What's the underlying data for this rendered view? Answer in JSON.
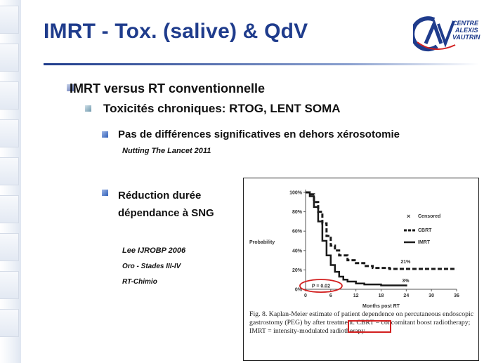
{
  "slide": {
    "title": "IMRT - Tox. (salive) & QdV",
    "logo": {
      "line1": "CENTRE",
      "line2": "ALEXIS",
      "line3": "VAUTRIN"
    },
    "bullets": {
      "level1": "IMRT versus RT conventionnelle",
      "level2": "Toxicités chroniques: RTOG, LENT SOMA",
      "level3_a": "Pas de différences significatives en dehors xérosotomie",
      "ref_a": "Nutting The Lancet 2011",
      "level3_b_line1": "Réduction durée",
      "level3_b_line2": "dépendance à SNG",
      "ref_b_line1": "Lee IJROBP 2006",
      "ref_b_line2": "Oro - Stades III-IV",
      "ref_b_line3": "RT-Chimio"
    }
  },
  "figure": {
    "caption": "Fig. 8. Kaplan-Meier estimate of patient dependence on percutaneous endoscopic gastrostomy (PEG) by after treatment. CBRT = concomitant boost radiotherapy; IMRT = intensity-modulated radiotherapy.",
    "p_value_label": "P = 0.02"
  },
  "chart_data": {
    "type": "line",
    "title": "",
    "xlabel": "Months post RT",
    "ylabel": "Probability",
    "xlim": [
      0,
      36
    ],
    "ylim": [
      0,
      100
    ],
    "x_ticks": [
      "0",
      "6",
      "12",
      "18",
      "24",
      "30",
      "36"
    ],
    "y_ticks": [
      "0%",
      "20%",
      "40%",
      "60%",
      "80%",
      "100%"
    ],
    "legend": [
      "Censored",
      "CBRT",
      "IMRT"
    ],
    "legend_position": "top-right",
    "annotations": [
      "21%",
      "3%",
      "P = 0.02"
    ],
    "series": [
      {
        "name": "CBRT",
        "style": "dashed",
        "x": [
          0,
          1,
          2,
          3,
          4,
          5,
          6,
          7,
          8,
          10,
          12,
          14,
          16,
          20,
          24,
          30,
          36
        ],
        "y": [
          100,
          98,
          90,
          80,
          68,
          55,
          45,
          40,
          35,
          30,
          27,
          24,
          22,
          21,
          21,
          21,
          21
        ]
      },
      {
        "name": "IMRT",
        "style": "solid",
        "x": [
          0,
          1,
          2,
          3,
          4,
          5,
          6,
          7,
          8,
          9,
          10,
          12,
          14,
          18,
          24
        ],
        "y": [
          100,
          96,
          85,
          70,
          50,
          35,
          25,
          18,
          13,
          10,
          8,
          6,
          5,
          4,
          3
        ]
      }
    ]
  },
  "colors": {
    "title": "#1f3c8c",
    "highlight": "#d21f1f"
  }
}
